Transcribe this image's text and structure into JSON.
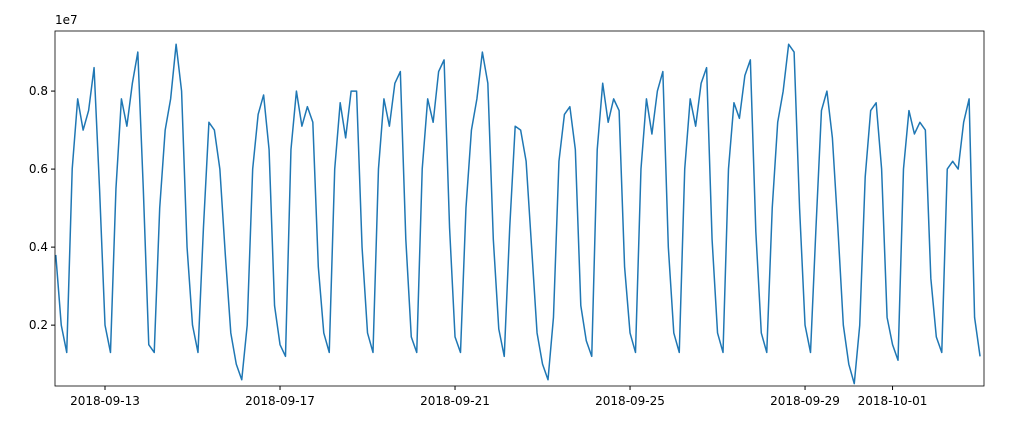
{
  "chart_data": {
    "type": "line",
    "y_offset_label": "1e7",
    "x": [
      "2018-09-11T21:00",
      "2018-09-12T00:00",
      "2018-09-12T03:00",
      "2018-09-12T06:00",
      "2018-09-12T09:00",
      "2018-09-12T12:00",
      "2018-09-12T15:00",
      "2018-09-12T18:00",
      "2018-09-12T21:00",
      "2018-09-13T00:00",
      "2018-09-13T03:00",
      "2018-09-13T06:00",
      "2018-09-13T09:00",
      "2018-09-13T12:00",
      "2018-09-13T15:00",
      "2018-09-13T18:00",
      "2018-09-13T21:00",
      "2018-09-14T00:00",
      "2018-09-14T03:00",
      "2018-09-14T06:00",
      "2018-09-14T09:00",
      "2018-09-14T12:00",
      "2018-09-14T15:00",
      "2018-09-14T18:00",
      "2018-09-14T21:00",
      "2018-09-15T00:00",
      "2018-09-15T03:00",
      "2018-09-15T06:00",
      "2018-09-15T09:00",
      "2018-09-15T12:00",
      "2018-09-15T15:00",
      "2018-09-15T18:00",
      "2018-09-15T21:00",
      "2018-09-16T00:00",
      "2018-09-16T03:00",
      "2018-09-16T06:00",
      "2018-09-16T09:00",
      "2018-09-16T12:00",
      "2018-09-16T15:00",
      "2018-09-16T18:00",
      "2018-09-16T21:00",
      "2018-09-17T00:00",
      "2018-09-17T03:00",
      "2018-09-17T06:00",
      "2018-09-17T09:00",
      "2018-09-17T12:00",
      "2018-09-17T15:00",
      "2018-09-17T18:00",
      "2018-09-17T21:00",
      "2018-09-18T00:00",
      "2018-09-18T03:00",
      "2018-09-18T06:00",
      "2018-09-18T09:00",
      "2018-09-18T12:00",
      "2018-09-18T15:00",
      "2018-09-18T18:00",
      "2018-09-18T21:00",
      "2018-09-19T00:00",
      "2018-09-19T03:00",
      "2018-09-19T06:00",
      "2018-09-19T09:00",
      "2018-09-19T12:00",
      "2018-09-19T15:00",
      "2018-09-19T18:00",
      "2018-09-19T21:00",
      "2018-09-20T00:00",
      "2018-09-20T03:00",
      "2018-09-20T06:00",
      "2018-09-20T09:00",
      "2018-09-20T12:00",
      "2018-09-20T15:00",
      "2018-09-20T18:00",
      "2018-09-20T21:00",
      "2018-09-21T00:00",
      "2018-09-21T03:00",
      "2018-09-21T06:00",
      "2018-09-21T09:00",
      "2018-09-21T12:00",
      "2018-09-21T15:00",
      "2018-09-21T18:00",
      "2018-09-21T21:00",
      "2018-09-22T00:00",
      "2018-09-22T03:00",
      "2018-09-22T06:00",
      "2018-09-22T09:00",
      "2018-09-22T12:00",
      "2018-09-22T15:00",
      "2018-09-22T18:00",
      "2018-09-22T21:00",
      "2018-09-23T00:00",
      "2018-09-23T03:00",
      "2018-09-23T06:00",
      "2018-09-23T09:00",
      "2018-09-23T12:00",
      "2018-09-23T15:00",
      "2018-09-23T18:00",
      "2018-09-23T21:00",
      "2018-09-24T00:00",
      "2018-09-24T03:00",
      "2018-09-24T06:00",
      "2018-09-24T09:00",
      "2018-09-24T12:00",
      "2018-09-24T15:00",
      "2018-09-24T18:00",
      "2018-09-24T21:00",
      "2018-09-25T00:00",
      "2018-09-25T03:00",
      "2018-09-25T06:00",
      "2018-09-25T09:00",
      "2018-09-25T12:00",
      "2018-09-25T15:00",
      "2018-09-25T18:00",
      "2018-09-25T21:00",
      "2018-09-26T00:00",
      "2018-09-26T03:00",
      "2018-09-26T06:00",
      "2018-09-26T09:00",
      "2018-09-26T12:00",
      "2018-09-26T15:00",
      "2018-09-26T18:00",
      "2018-09-26T21:00",
      "2018-09-27T00:00",
      "2018-09-27T03:00",
      "2018-09-27T06:00",
      "2018-09-27T09:00",
      "2018-09-27T12:00",
      "2018-09-27T15:00",
      "2018-09-27T18:00",
      "2018-09-27T21:00",
      "2018-09-28T00:00",
      "2018-09-28T03:00",
      "2018-09-28T06:00",
      "2018-09-28T09:00",
      "2018-09-28T12:00",
      "2018-09-28T15:00",
      "2018-09-28T18:00",
      "2018-09-28T21:00",
      "2018-09-29T00:00",
      "2018-09-29T03:00",
      "2018-09-29T06:00",
      "2018-09-29T09:00",
      "2018-09-29T12:00",
      "2018-09-29T15:00",
      "2018-09-29T18:00",
      "2018-09-29T21:00",
      "2018-09-30T00:00",
      "2018-09-30T03:00",
      "2018-09-30T06:00",
      "2018-09-30T09:00",
      "2018-09-30T12:00",
      "2018-09-30T15:00",
      "2018-09-30T18:00",
      "2018-09-30T21:00",
      "2018-10-01T00:00",
      "2018-10-01T03:00",
      "2018-10-01T06:00",
      "2018-10-01T09:00",
      "2018-10-01T12:00",
      "2018-10-01T15:00",
      "2018-10-01T18:00",
      "2018-10-01T21:00",
      "2018-10-02T00:00",
      "2018-10-02T03:00",
      "2018-10-02T06:00",
      "2018-10-02T09:00",
      "2018-10-02T12:00",
      "2018-10-02T15:00",
      "2018-10-02T18:00",
      "2018-10-02T21:00",
      "2018-10-03T00:00"
    ],
    "series": [
      {
        "color": "#1f77b4",
        "values": [
          0.38,
          0.2,
          0.13,
          0.6,
          0.78,
          0.7,
          0.75,
          0.86,
          0.55,
          0.2,
          0.13,
          0.55,
          0.78,
          0.71,
          0.82,
          0.9,
          0.55,
          0.15,
          0.13,
          0.5,
          0.7,
          0.78,
          0.92,
          0.8,
          0.4,
          0.2,
          0.13,
          0.45,
          0.72,
          0.7,
          0.6,
          0.38,
          0.18,
          0.1,
          0.06,
          0.2,
          0.6,
          0.74,
          0.79,
          0.65,
          0.25,
          0.15,
          0.12,
          0.65,
          0.8,
          0.71,
          0.76,
          0.72,
          0.35,
          0.18,
          0.13,
          0.6,
          0.77,
          0.68,
          0.8,
          0.8,
          0.4,
          0.18,
          0.13,
          0.6,
          0.78,
          0.71,
          0.82,
          0.85,
          0.42,
          0.17,
          0.13,
          0.6,
          0.78,
          0.72,
          0.85,
          0.88,
          0.45,
          0.17,
          0.13,
          0.5,
          0.7,
          0.78,
          0.9,
          0.82,
          0.42,
          0.19,
          0.12,
          0.45,
          0.71,
          0.7,
          0.62,
          0.4,
          0.18,
          0.1,
          0.06,
          0.22,
          0.62,
          0.74,
          0.76,
          0.65,
          0.25,
          0.16,
          0.12,
          0.65,
          0.82,
          0.72,
          0.78,
          0.75,
          0.35,
          0.18,
          0.13,
          0.6,
          0.78,
          0.69,
          0.8,
          0.85,
          0.4,
          0.18,
          0.13,
          0.6,
          0.78,
          0.71,
          0.82,
          0.86,
          0.42,
          0.18,
          0.13,
          0.6,
          0.77,
          0.73,
          0.84,
          0.88,
          0.44,
          0.18,
          0.13,
          0.5,
          0.72,
          0.8,
          0.92,
          0.9,
          0.5,
          0.2,
          0.13,
          0.45,
          0.75,
          0.8,
          0.68,
          0.45,
          0.2,
          0.1,
          0.05,
          0.2,
          0.58,
          0.75,
          0.77,
          0.6,
          0.22,
          0.15,
          0.11,
          0.6,
          0.75,
          0.69,
          0.72,
          0.7,
          0.32,
          0.17,
          0.13,
          0.6,
          0.62,
          0.6,
          0.72,
          0.78,
          0.22,
          0.12
        ]
      }
    ],
    "xlim": [
      "2018-09-11T20:34",
      "2018-10-03T02:10"
    ],
    "xticks": [
      "2018-09-13",
      "2018-09-17",
      "2018-09-21",
      "2018-09-25",
      "2018-09-29",
      "2018-10-01"
    ],
    "ylim": [
      0.044,
      0.954
    ],
    "yticks": [
      0.2,
      0.4,
      0.6,
      0.8
    ],
    "grid": false
  }
}
